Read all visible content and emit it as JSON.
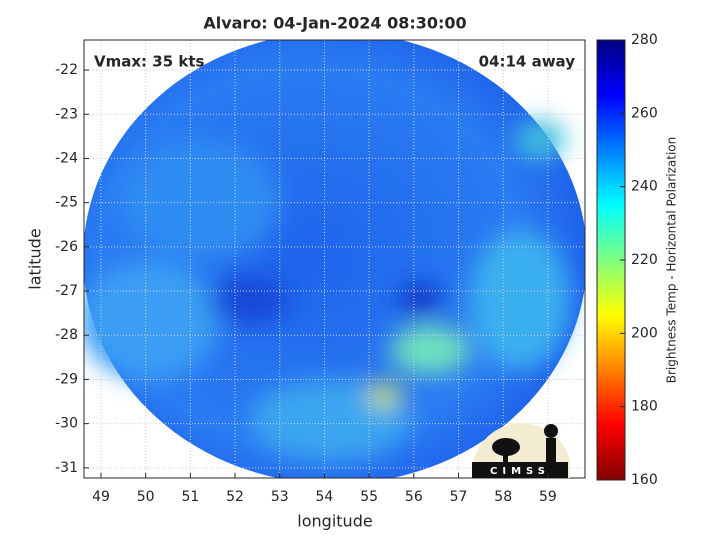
{
  "chart_data": {
    "type": "image",
    "title": "Alvaro: 04-Jan-2024 08:30:00",
    "xlabel": "longitude",
    "ylabel": "latitude",
    "annotations": [
      "Vmax: 35 kts",
      "04:14 away"
    ],
    "xlim": [
      48.62,
      59.83
    ],
    "ylim": [
      -31.23,
      -21.32
    ],
    "xticks": [
      49,
      50,
      51,
      52,
      53,
      54,
      55,
      56,
      57,
      58,
      59
    ],
    "yticks": [
      -31,
      -30,
      -29,
      -28,
      -27,
      -26,
      -25,
      -24,
      -23,
      -22
    ],
    "grid": true,
    "colorbar": {
      "label": "Brightness Temp - Horizontal Polarization",
      "colormap": "jet",
      "lim": [
        160,
        280
      ],
      "ticks": [
        160,
        180,
        200,
        220,
        240,
        260,
        280
      ]
    },
    "logo": "CIMSS"
  }
}
